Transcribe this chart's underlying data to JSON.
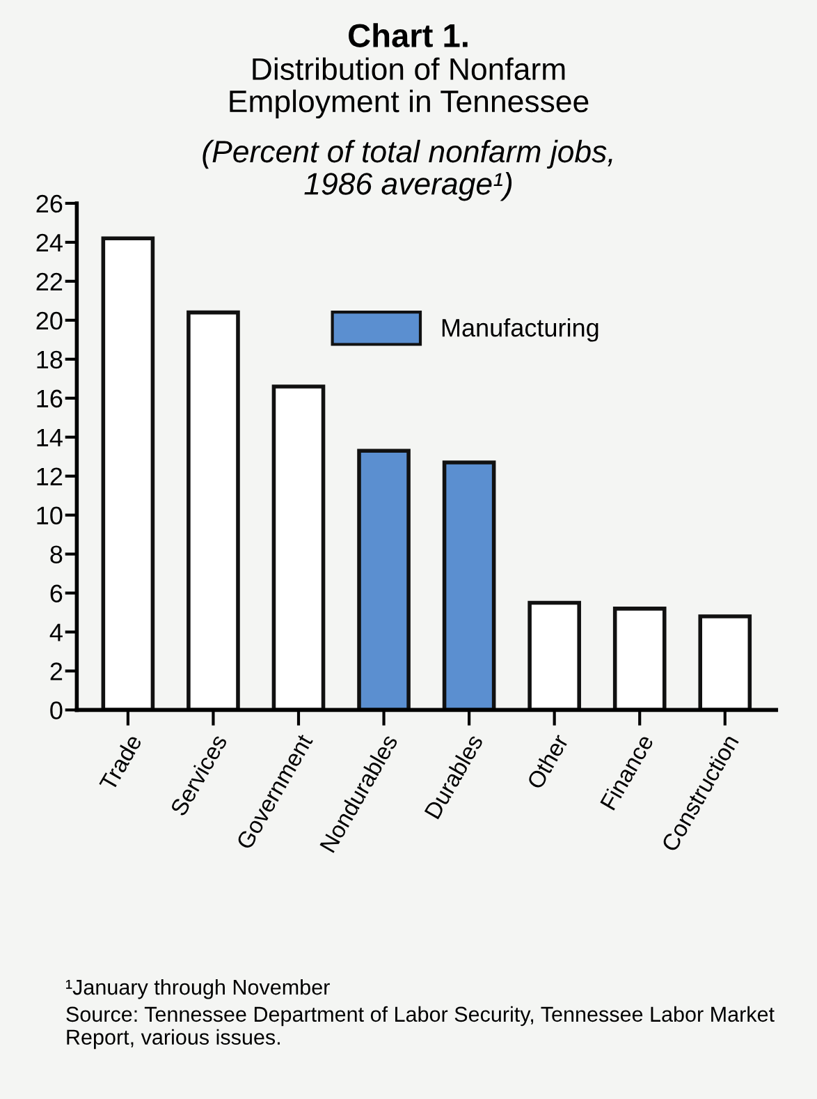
{
  "chart_data": {
    "type": "bar",
    "title": "Chart 1.",
    "subtitle": "Distribution of Nonfarm\nEmployment in Tennessee",
    "ylabel": "(Percent of total nonfarm jobs,\n1986 average¹)",
    "categories": [
      "Trade",
      "Services",
      "Government",
      "Nondurables",
      "Durables",
      "Other",
      "Finance",
      "Construction"
    ],
    "series": [
      {
        "color": "#ffffff",
        "values": [
          24.2,
          20.4,
          16.6,
          null,
          null,
          5.5,
          5.2,
          4.8
        ]
      },
      {
        "name": "Manufacturing",
        "color": "#5b8fd0",
        "values": [
          null,
          null,
          null,
          13.3,
          12.7,
          null,
          null,
          null
        ]
      }
    ],
    "ylim": [
      0,
      26
    ],
    "yticks": [
      0,
      2,
      4,
      6,
      8,
      10,
      12,
      14,
      16,
      18,
      20,
      22,
      24,
      26
    ],
    "grid": false,
    "legend": "top right",
    "annotations": [
      "¹January through November",
      "Source: Tennessee Department of Labor Security, Tennessee Labor Market Report, various issues."
    ]
  }
}
